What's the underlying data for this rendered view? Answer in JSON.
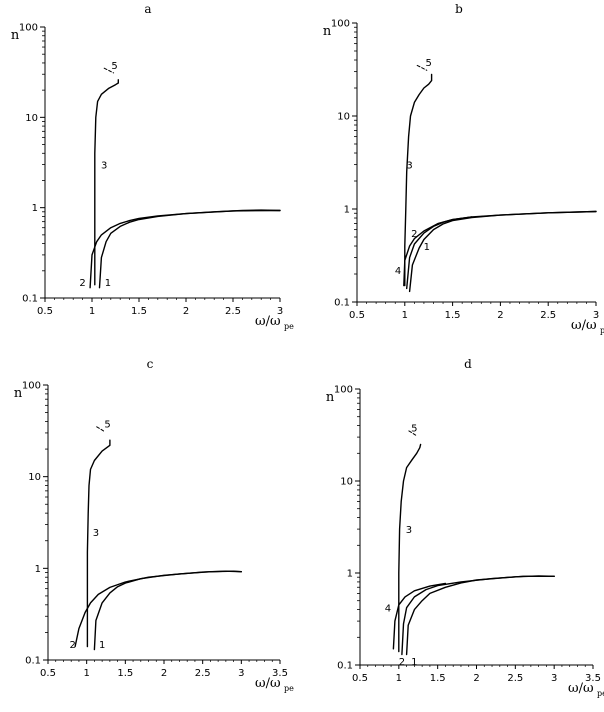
{
  "chart_data": [
    {
      "type": "line",
      "title": "a",
      "ylabel": "n",
      "xlabel": "ω/ω",
      "xlabel_sub": "pe",
      "xlim": [
        0.5,
        3
      ],
      "ylim": [
        0.1,
        100
      ],
      "yscale": "log",
      "xticks": [
        "0.5",
        "1",
        "1.5",
        "2",
        "2.5",
        "3"
      ],
      "yticks": [
        "0.1",
        "1",
        "10",
        "100"
      ],
      "series": [
        {
          "name": "1",
          "x": [
            1.08,
            1.1,
            1.15,
            1.2,
            1.3,
            1.4,
            1.5,
            1.7,
            2.0,
            2.3,
            2.6,
            2.8,
            3.0
          ],
          "y": [
            0.13,
            0.28,
            0.42,
            0.52,
            0.62,
            0.69,
            0.74,
            0.8,
            0.86,
            0.9,
            0.93,
            0.94,
            0.93
          ]
        },
        {
          "name": "2",
          "x": [
            0.98,
            1.0,
            1.05,
            1.1,
            1.2,
            1.3,
            1.4,
            1.5,
            1.7,
            2.0,
            2.5,
            3.0
          ],
          "y": [
            0.13,
            0.3,
            0.42,
            0.5,
            0.6,
            0.67,
            0.72,
            0.76,
            0.81,
            0.86,
            0.92,
            0.93
          ]
        },
        {
          "name": "3",
          "x": [
            1.03,
            1.03,
            1.03,
            1.03,
            1.04,
            1.06,
            1.1,
            1.18,
            1.25,
            1.28,
            1.28
          ],
          "y": [
            0.14,
            0.5,
            1.5,
            4,
            10,
            15,
            18,
            21,
            23,
            24,
            26
          ]
        },
        {
          "name": "5",
          "x": [
            1.13,
            1.18,
            1.23
          ],
          "y": [
            35,
            33,
            31
          ],
          "dashed": true
        }
      ],
      "curve_labels": [
        {
          "text": "1",
          "x": 1.17,
          "y": 0.15
        },
        {
          "text": "2",
          "x": 0.9,
          "y": 0.15
        },
        {
          "text": "3",
          "x": 1.13,
          "y": 3
        },
        {
          "text": "5",
          "x": 1.24,
          "y": 38
        }
      ]
    },
    {
      "type": "line",
      "title": "b",
      "ylabel": "n",
      "xlabel": "ω/ω",
      "xlabel_sub": "pe",
      "xlim": [
        0.5,
        3
      ],
      "ylim": [
        0.1,
        100
      ],
      "yscale": "log",
      "xticks": [
        "0.5",
        "1",
        "1.5",
        "2",
        "2.5",
        "3"
      ],
      "yticks": [
        "0.1",
        "1",
        "10",
        "100"
      ],
      "series": [
        {
          "name": "1",
          "x": [
            1.05,
            1.08,
            1.15,
            1.2,
            1.3,
            1.4,
            1.5,
            1.7,
            2.0,
            2.5,
            3.0
          ],
          "y": [
            0.13,
            0.25,
            0.38,
            0.47,
            0.6,
            0.69,
            0.75,
            0.81,
            0.86,
            0.91,
            0.94
          ]
        },
        {
          "name": "2",
          "x": [
            1.02,
            1.05,
            1.1,
            1.2,
            1.3,
            1.4,
            1.5,
            1.7,
            2.0,
            2.5,
            3.0
          ],
          "y": [
            0.14,
            0.3,
            0.42,
            0.55,
            0.65,
            0.72,
            0.77,
            0.82,
            0.86,
            0.91,
            0.94
          ]
        },
        {
          "name": "3",
          "x": [
            1.0,
            1.0,
            1.01,
            1.02,
            1.04,
            1.06,
            1.1,
            1.15,
            1.2,
            1.25,
            1.28,
            1.28
          ],
          "y": [
            0.15,
            0.4,
            1,
            2.5,
            6,
            10,
            14,
            17,
            20,
            22,
            24,
            28
          ]
        },
        {
          "name": "4",
          "x": [
            0.99,
            1.0,
            1.05,
            1.1,
            1.2,
            1.35,
            1.5,
            1.7
          ],
          "y": [
            0.15,
            0.28,
            0.4,
            0.48,
            0.58,
            0.7,
            0.77,
            0.82
          ]
        },
        {
          "name": "5",
          "x": [
            1.13,
            1.18,
            1.23
          ],
          "y": [
            35,
            33,
            31
          ],
          "dashed": true
        }
      ],
      "curve_labels": [
        {
          "text": "1",
          "x": 1.23,
          "y": 0.4
        },
        {
          "text": "2",
          "x": 1.1,
          "y": 0.55
        },
        {
          "text": "3",
          "x": 1.05,
          "y": 3
        },
        {
          "text": "4",
          "x": 0.93,
          "y": 0.22
        },
        {
          "text": "5",
          "x": 1.25,
          "y": 38
        }
      ]
    },
    {
      "type": "line",
      "title": "c",
      "ylabel": "n",
      "xlabel": "ω/ω",
      "xlabel_sub": "pe",
      "xlim": [
        0.5,
        3.5
      ],
      "ylim": [
        0.1,
        100
      ],
      "yscale": "log",
      "xticks": [
        "0.5",
        "1",
        "1.5",
        "2",
        "2.5",
        "3",
        "3.5"
      ],
      "yticks": [
        "0.1",
        "1",
        "10",
        "100"
      ],
      "series": [
        {
          "name": "1",
          "x": [
            1.1,
            1.12,
            1.2,
            1.3,
            1.4,
            1.5,
            1.7,
            2.0,
            2.5,
            2.8,
            3.0
          ],
          "y": [
            0.13,
            0.27,
            0.42,
            0.54,
            0.63,
            0.69,
            0.77,
            0.84,
            0.91,
            0.93,
            0.92
          ]
        },
        {
          "name": "2",
          "x": [
            0.85,
            0.9,
            0.98,
            1.05,
            1.15,
            1.3,
            1.5,
            1.8,
            2.2,
            2.6,
            2.9,
            3.0
          ],
          "y": [
            0.14,
            0.22,
            0.33,
            0.42,
            0.52,
            0.62,
            0.71,
            0.8,
            0.87,
            0.92,
            0.93,
            0.92
          ]
        },
        {
          "name": "3",
          "x": [
            1.01,
            1.01,
            1.01,
            1.02,
            1.03,
            1.05,
            1.1,
            1.2,
            1.3,
            1.3
          ],
          "y": [
            0.14,
            0.5,
            1.5,
            4,
            8,
            12,
            15,
            19,
            22,
            25
          ]
        },
        {
          "name": "5",
          "x": [
            1.13,
            1.18,
            1.23
          ],
          "y": [
            35,
            33,
            31
          ],
          "dashed": true
        }
      ],
      "curve_labels": [
        {
          "text": "1",
          "x": 1.2,
          "y": 0.15
        },
        {
          "text": "2",
          "x": 0.82,
          "y": 0.15
        },
        {
          "text": "3",
          "x": 1.12,
          "y": 2.5
        },
        {
          "text": "5",
          "x": 1.27,
          "y": 38
        }
      ]
    },
    {
      "type": "line",
      "title": "d",
      "ylabel": "n",
      "xlabel": "ω/ω",
      "xlabel_sub": "pe",
      "xlim": [
        0.5,
        3.5
      ],
      "ylim": [
        0.1,
        100
      ],
      "yscale": "log",
      "xticks": [
        "0.5",
        "1",
        "1.5",
        "2",
        "2.5",
        "3",
        "3.5"
      ],
      "yticks": [
        "0.1",
        "1",
        "10",
        "100"
      ],
      "series": [
        {
          "name": "1",
          "x": [
            1.1,
            1.12,
            1.2,
            1.3,
            1.4,
            1.6,
            1.8,
            2.0,
            2.5,
            2.8,
            3.0
          ],
          "y": [
            0.13,
            0.27,
            0.4,
            0.5,
            0.6,
            0.7,
            0.78,
            0.84,
            0.91,
            0.93,
            0.92
          ]
        },
        {
          "name": "2",
          "x": [
            1.04,
            1.06,
            1.1,
            1.2,
            1.35,
            1.5,
            1.8,
            2.2,
            2.6,
            3.0
          ],
          "y": [
            0.13,
            0.28,
            0.42,
            0.55,
            0.66,
            0.73,
            0.8,
            0.87,
            0.92,
            0.92
          ]
        },
        {
          "name": "3",
          "x": [
            1.0,
            1.0,
            1.0,
            1.01,
            1.03,
            1.06,
            1.1,
            1.17,
            1.23,
            1.27,
            1.28
          ],
          "y": [
            0.14,
            0.5,
            1,
            3,
            6,
            10,
            14,
            17,
            20,
            23,
            25
          ]
        },
        {
          "name": "4",
          "x": [
            0.93,
            0.95,
            1.0,
            1.08,
            1.2,
            1.4,
            1.6
          ],
          "y": [
            0.15,
            0.3,
            0.45,
            0.55,
            0.64,
            0.72,
            0.77
          ]
        },
        {
          "name": "5",
          "x": [
            1.13,
            1.18,
            1.23
          ],
          "y": [
            35,
            33,
            31
          ],
          "dashed": true
        }
      ],
      "curve_labels": [
        {
          "text": "1",
          "x": 1.2,
          "y": 0.11
        },
        {
          "text": "2",
          "x": 1.04,
          "y": 0.11
        },
        {
          "text": "3",
          "x": 1.13,
          "y": 3
        },
        {
          "text": "4",
          "x": 0.86,
          "y": 0.42
        },
        {
          "text": "5",
          "x": 1.2,
          "y": 38
        }
      ]
    }
  ]
}
